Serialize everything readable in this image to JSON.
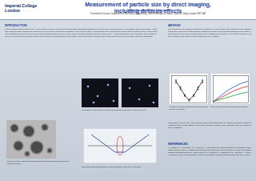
{
  "header": {
    "institution": "Imperial College London",
    "title": "Measurement of particle size by direct imaging, including defocus effects",
    "authors": "Julian Saunders, John Stringham",
    "affiliation": "Thermofluids Division, Department of Mechanical Engineering, South Kensington Campus, Imperial College London SW7 2AZ"
  },
  "sections": [
    {
      "heading": "INTRODUCTION",
      "text": "Particle/droplet image analysis (PDIA) is an imaging technique which uses an automated processing algorithm for measuring the particle sizes of in-line images of two-phase flows. As with other shadow based methods, the apparent size of a particle depends on its distance from the focal plane, so that objects out of focus appear blurred and are wrongly sized. The present work quantifies this defocus effect using glass calibration particles and a reticle placed at known positions along the optical axis. A correction based on the measured edge gradient is derived, allowing the true diameter and the depth of field to be estimated for each particle, thus extending the measurement volume and improving the accuracy of the size distribution."
    },
    {
      "heading": "METHOD",
      "text": "The illumination and imaging arrangement consists of a pulsed diffuse back light and a long distance microscope coupled to a digital camera. Calibration particles were traversed through the focal plane in small steps and the image of each particle was recorded and processed. The apparent diameter and the normalised edge gradient were measured at every position."
    },
    {
      "heading": "",
      "text": "Comparison of spray PDIA and Malvern results demonstrates that the defocus correction brings the measured Sauter mean diameter into close agreement with the laser diffraction data for a range of spray conditions."
    },
    {
      "heading": "REFERENCES",
      "text": "1. Kashdan J.T., Shrimpton J.S., Whybrew A. Two-phase flow characterisation by automated digital image analysis. Part 1: Fundamental principles and calibration of the technique. Particle and Particle Systems Characterization 20 (2003) 387-397. 2. Kashdan J.T., Shrimpton J.S., Whybrew A. Part 2: Application of PDIA for sizing sprays. Particle and Particle Systems Characterization 21 (2004) 15-23."
    }
  ],
  "figures": [
    {
      "caption": "Computer image of Ballotini glass calibration particles showing blurring of out-of-focus particles"
    },
    {
      "caption": "Schematic representation of image analysis setup and sample image of a spray"
    },
    {
      "caption": "Schematic diagram showing the effect of defocus on the grey level profile"
    },
    {
      "caption": "Variation of defocus with dimensionless distance from the focal plane"
    },
    {
      "caption": "Depth of field as a function of particle diameter"
    }
  ],
  "chart_data": [
    {
      "type": "scatter",
      "x": [
        -3,
        -2,
        -1,
        0,
        1,
        2,
        3
      ],
      "xlim": [
        -4,
        4
      ],
      "ylim": [
        0,
        1.2
      ],
      "tick_labels": false,
      "series": [
        {
          "color": "#1f4fd0",
          "marker": "circle",
          "values": [
            1.0,
            0.7,
            0.35,
            0.1,
            0.35,
            0.7,
            1.0
          ]
        },
        {
          "color": "#d02020",
          "marker": "circle",
          "values": [
            0.9,
            0.6,
            0.3,
            0.15,
            0.3,
            0.6,
            0.9
          ]
        },
        {
          "color": "#111111",
          "type": "line",
          "values": [
            0.95,
            0.65,
            0.32,
            0.12,
            0.32,
            0.65,
            0.95
          ]
        }
      ]
    },
    {
      "type": "line",
      "x": [
        0,
        1,
        2,
        3,
        4,
        5
      ],
      "xlim": [
        0,
        5
      ],
      "ylim": [
        0,
        1
      ],
      "tick_labels": false,
      "series": [
        {
          "color": "#1f4fd0",
          "values": [
            0.05,
            0.25,
            0.45,
            0.6,
            0.72,
            0.8
          ]
        },
        {
          "color": "#d02020",
          "values": [
            0.05,
            0.18,
            0.32,
            0.45,
            0.55,
            0.62
          ]
        },
        {
          "color": "#1a9a30",
          "values": [
            0.05,
            0.12,
            0.2,
            0.28,
            0.35,
            0.4
          ]
        }
      ]
    }
  ]
}
